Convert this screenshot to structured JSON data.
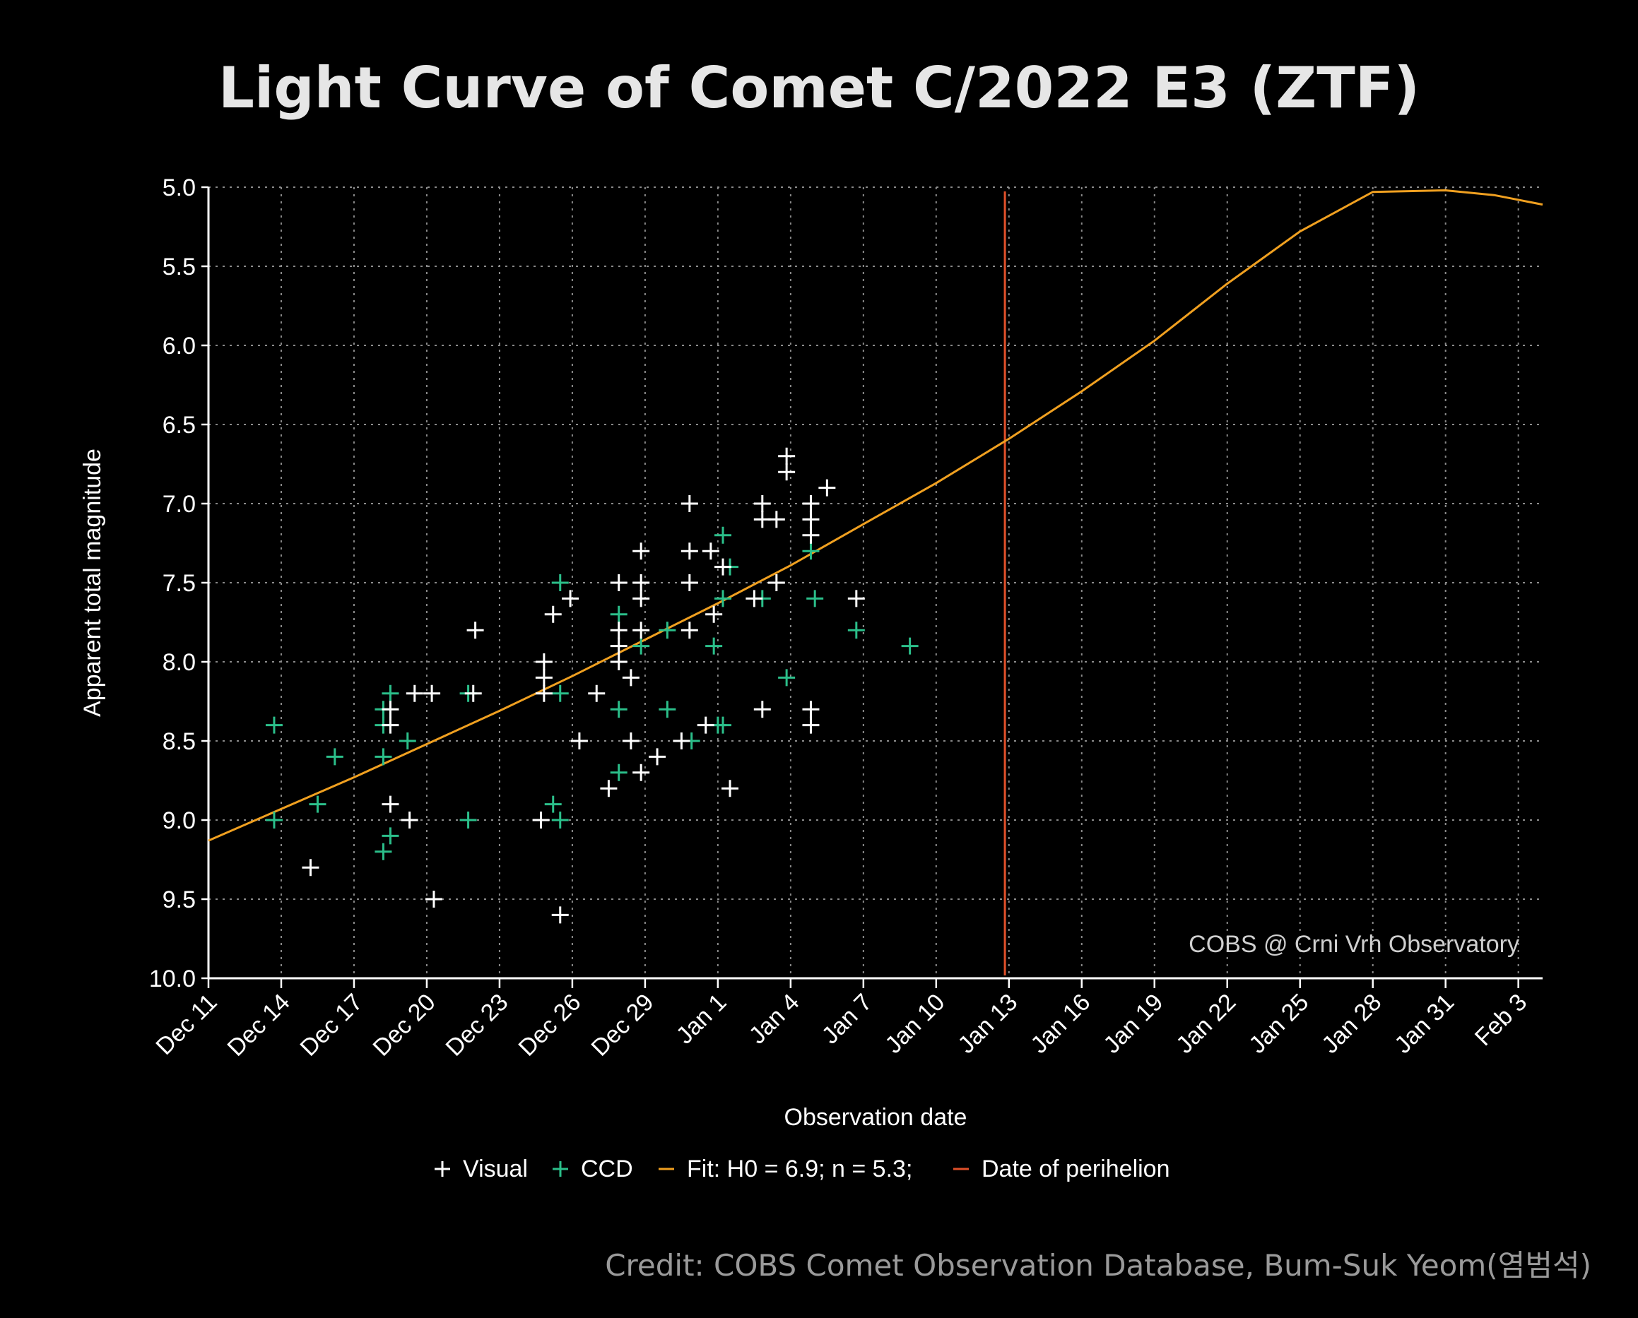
{
  "colors": {
    "background": "#000000",
    "axis": "#ffffff",
    "grid": "#8a8a8a",
    "visual": "#ffffff",
    "ccd": "#2bbf8a",
    "fit": "#f0a020",
    "perihelion": "#e0502a"
  },
  "chart_data": {
    "type": "scatter",
    "title": "Light Curve of Comet C/2022 E3 (ZTF)",
    "xlabel": "Observation date",
    "ylabel": "Apparent total magnitude",
    "y_inverted": true,
    "ylim": [
      5.0,
      10.0
    ],
    "yticks": [
      "5.0",
      "5.5",
      "6.0",
      "6.5",
      "7.0",
      "7.5",
      "8.0",
      "8.5",
      "9.0",
      "9.5",
      "10.0"
    ],
    "xlim": [
      "2022-12-11",
      "2023-02-04"
    ],
    "xticks": [
      {
        "label": "Dec 11",
        "date": "2022-12-11"
      },
      {
        "label": "Dec 14",
        "date": "2022-12-14"
      },
      {
        "label": "Dec 17",
        "date": "2022-12-17"
      },
      {
        "label": "Dec 20",
        "date": "2022-12-20"
      },
      {
        "label": "Dec 23",
        "date": "2022-12-23"
      },
      {
        "label": "Dec 26",
        "date": "2022-12-26"
      },
      {
        "label": "Dec 29",
        "date": "2022-12-29"
      },
      {
        "label": "Jan 1",
        "date": "2023-01-01"
      },
      {
        "label": "Jan 4",
        "date": "2023-01-04"
      },
      {
        "label": "Jan 7",
        "date": "2023-01-07"
      },
      {
        "label": "Jan 10",
        "date": "2023-01-10"
      },
      {
        "label": "Jan 13",
        "date": "2023-01-13"
      },
      {
        "label": "Jan 16",
        "date": "2023-01-16"
      },
      {
        "label": "Jan 19",
        "date": "2023-01-19"
      },
      {
        "label": "Jan 22",
        "date": "2023-01-22"
      },
      {
        "label": "Jan 25",
        "date": "2023-01-25"
      },
      {
        "label": "Jan 28",
        "date": "2023-01-28"
      },
      {
        "label": "Jan 31",
        "date": "2023-01-31"
      },
      {
        "label": "Feb 3",
        "date": "2023-02-03"
      }
    ],
    "grid": true,
    "annotation": "COBS @ Crni Vrh Observatory",
    "legend": {
      "placement": "bottom-center",
      "entries": [
        "Visual",
        "CCD",
        "Fit: H0 = 6.9; n = 5.3;",
        "Date of perihelion"
      ]
    },
    "series": [
      {
        "name": "Visual",
        "marker": "plus",
        "points": [
          [
            "2022-12-15 05:00",
            9.3
          ],
          [
            "2022-12-18 12:00",
            8.3
          ],
          [
            "2022-12-18 12:00",
            8.4
          ],
          [
            "2022-12-18 12:00",
            8.9
          ],
          [
            "2022-12-19 07:00",
            9.0
          ],
          [
            "2022-12-19 12:00",
            8.2
          ],
          [
            "2022-12-20 05:00",
            8.2
          ],
          [
            "2022-12-20 07:00",
            9.5
          ],
          [
            "2022-12-21 22:00",
            8.2
          ],
          [
            "2022-12-22 00:00",
            7.8
          ],
          [
            "2022-12-24 17:00",
            9.0
          ],
          [
            "2022-12-24 20:00",
            8.2
          ],
          [
            "2022-12-24 20:00",
            8.0
          ],
          [
            "2022-12-24 20:00",
            8.1
          ],
          [
            "2022-12-25 05:00",
            7.7
          ],
          [
            "2022-12-25 12:00",
            9.6
          ],
          [
            "2022-12-25 22:00",
            7.6
          ],
          [
            "2022-12-26 07:00",
            8.5
          ],
          [
            "2022-12-27 00:00",
            8.2
          ],
          [
            "2022-12-27 12:00",
            8.8
          ],
          [
            "2022-12-27 22:00",
            7.5
          ],
          [
            "2022-12-27 22:00",
            7.8
          ],
          [
            "2022-12-27 22:00",
            7.9
          ],
          [
            "2022-12-27 22:00",
            8.0
          ],
          [
            "2022-12-28 10:00",
            8.1
          ],
          [
            "2022-12-28 10:00",
            8.5
          ],
          [
            "2022-12-28 20:00",
            7.3
          ],
          [
            "2022-12-28 20:00",
            7.5
          ],
          [
            "2022-12-28 20:00",
            7.6
          ],
          [
            "2022-12-28 20:00",
            7.8
          ],
          [
            "2022-12-28 20:00",
            8.7
          ],
          [
            "2022-12-29 12:00",
            8.6
          ],
          [
            "2022-12-30 12:00",
            8.5
          ],
          [
            "2022-12-30 20:00",
            7.0
          ],
          [
            "2022-12-30 20:00",
            7.3
          ],
          [
            "2022-12-30 20:00",
            7.5
          ],
          [
            "2022-12-30 20:00",
            7.8
          ],
          [
            "2022-12-31 12:00",
            8.4
          ],
          [
            "2022-12-31 17:00",
            7.3
          ],
          [
            "2022-12-31 20:00",
            7.7
          ],
          [
            "2023-01-01 05:00",
            7.4
          ],
          [
            "2023-01-01 12:00",
            8.8
          ],
          [
            "2023-01-02 12:00",
            7.6
          ],
          [
            "2023-01-02 20:00",
            7.0
          ],
          [
            "2023-01-02 20:00",
            7.1
          ],
          [
            "2023-01-02 20:00",
            8.3
          ],
          [
            "2023-01-03 10:00",
            7.1
          ],
          [
            "2023-01-03 10:00",
            7.5
          ],
          [
            "2023-01-03 20:00",
            6.7
          ],
          [
            "2023-01-03 20:00",
            6.8
          ],
          [
            "2023-01-04 20:00",
            7.0
          ],
          [
            "2023-01-04 20:00",
            7.1
          ],
          [
            "2023-01-04 20:00",
            7.2
          ],
          [
            "2023-01-04 20:00",
            8.3
          ],
          [
            "2023-01-04 20:00",
            8.4
          ],
          [
            "2023-01-05 12:00",
            6.9
          ],
          [
            "2023-01-06 17:00",
            7.6
          ]
        ]
      },
      {
        "name": "CCD",
        "marker": "plus",
        "points": [
          [
            "2022-12-13 17:00",
            8.4
          ],
          [
            "2022-12-13 17:00",
            9.0
          ],
          [
            "2022-12-15 12:00",
            8.9
          ],
          [
            "2022-12-16 05:00",
            8.6
          ],
          [
            "2022-12-18 05:00",
            8.3
          ],
          [
            "2022-12-18 05:00",
            8.4
          ],
          [
            "2022-12-18 05:00",
            8.6
          ],
          [
            "2022-12-18 05:00",
            9.2
          ],
          [
            "2022-12-18 12:00",
            8.2
          ],
          [
            "2022-12-18 12:00",
            9.1
          ],
          [
            "2022-12-19 05:00",
            8.5
          ],
          [
            "2022-12-21 17:00",
            8.2
          ],
          [
            "2022-12-21 17:00",
            9.0
          ],
          [
            "2022-12-25 05:00",
            8.9
          ],
          [
            "2022-12-25 12:00",
            7.5
          ],
          [
            "2022-12-25 12:00",
            8.2
          ],
          [
            "2022-12-25 12:00",
            9.0
          ],
          [
            "2022-12-27 22:00",
            7.7
          ],
          [
            "2022-12-27 22:00",
            8.3
          ],
          [
            "2022-12-27 22:00",
            8.7
          ],
          [
            "2022-12-28 20:00",
            7.9
          ],
          [
            "2022-12-29 22:00",
            7.8
          ],
          [
            "2022-12-29 22:00",
            8.3
          ],
          [
            "2022-12-30 22:00",
            8.5
          ],
          [
            "2022-12-31 20:00",
            7.9
          ],
          [
            "2023-01-01 00:00",
            8.4
          ],
          [
            "2023-01-01 05:00",
            7.2
          ],
          [
            "2023-01-01 05:00",
            7.6
          ],
          [
            "2023-01-01 05:00",
            8.4
          ],
          [
            "2023-01-01 12:00",
            7.4
          ],
          [
            "2023-01-02 20:00",
            7.6
          ],
          [
            "2023-01-03 20:00",
            8.1
          ],
          [
            "2023-01-04 20:00",
            7.3
          ],
          [
            "2023-01-05 00:00",
            7.6
          ],
          [
            "2023-01-06 17:00",
            7.8
          ],
          [
            "2023-01-08 22:00",
            7.9
          ]
        ]
      },
      {
        "name": "Fit: H0 = 6.9; n = 5.3;",
        "type": "line",
        "points": [
          [
            "2022-12-11",
            9.13
          ],
          [
            "2022-12-14",
            8.93
          ],
          [
            "2022-12-17",
            8.73
          ],
          [
            "2022-12-20",
            8.52
          ],
          [
            "2022-12-23",
            8.31
          ],
          [
            "2022-12-26",
            8.09
          ],
          [
            "2022-12-29",
            7.86
          ],
          [
            "2023-01-01",
            7.63
          ],
          [
            "2023-01-04",
            7.39
          ],
          [
            "2023-01-07",
            7.13
          ],
          [
            "2023-01-10",
            6.87
          ],
          [
            "2023-01-13",
            6.59
          ],
          [
            "2023-01-16",
            6.29
          ],
          [
            "2023-01-19",
            5.97
          ],
          [
            "2023-01-22",
            5.61
          ],
          [
            "2023-01-25",
            5.28
          ],
          [
            "2023-01-28",
            5.03
          ],
          [
            "2023-01-31",
            5.02
          ],
          [
            "2023-02-02",
            5.05
          ],
          [
            "2023-02-04",
            5.11
          ]
        ]
      },
      {
        "name": "Date of perihelion",
        "type": "vline",
        "x": "2023-01-12 20:00"
      }
    ]
  },
  "credit": "Credit: COBS Comet Observation Database, Bum-Suk Yeom(염범석)"
}
